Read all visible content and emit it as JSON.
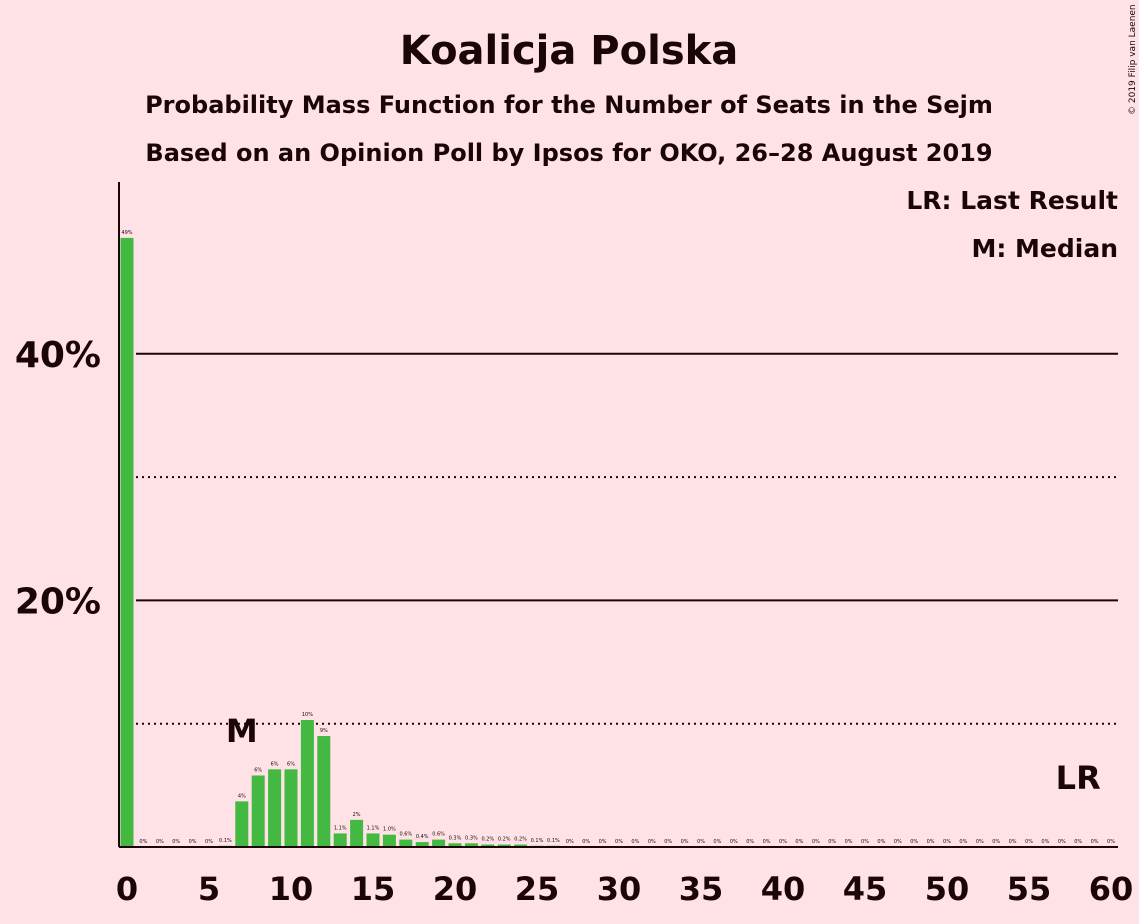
{
  "chart_data": {
    "type": "bar",
    "title": "Koalicja Polska",
    "subtitle": "Probability Mass Function for the Number of Seats in the Sejm",
    "subtitle2": "Based on an Opinion Poll by Ipsos for OKO, 26–28 August 2019",
    "copyright": "© 2019 Filip van Laenen",
    "legend": [
      "LR: Last Result",
      "M: Median"
    ],
    "legend_placement": "top-right",
    "bar_color": "#43B941",
    "xlim": [
      0,
      60
    ],
    "ylim": [
      0,
      0.54
    ],
    "x_ticks": [
      0,
      5,
      10,
      15,
      20,
      25,
      30,
      35,
      40,
      45,
      50,
      55,
      60
    ],
    "y_ticks_labeled": [
      {
        "value": 0.2,
        "label": "20%"
      },
      {
        "value": 0.4,
        "label": "40%"
      }
    ],
    "y_grid_dotted": [
      0.1,
      0.3
    ],
    "median_seat": 7,
    "median_label": "M",
    "last_result_seat": 58,
    "last_result_label": "LR",
    "x": [
      0,
      1,
      2,
      3,
      4,
      5,
      6,
      7,
      8,
      9,
      10,
      11,
      12,
      13,
      14,
      15,
      16,
      17,
      18,
      19,
      20,
      21,
      22,
      23,
      24,
      25,
      26,
      27,
      28,
      29,
      30,
      31,
      32,
      33,
      34,
      35,
      36,
      37,
      38,
      39,
      40,
      41,
      42,
      43,
      44,
      45,
      46,
      47,
      48,
      49,
      50,
      51,
      52,
      53,
      54,
      55,
      56,
      57,
      58,
      59,
      60
    ],
    "values": [
      0.494,
      0,
      0,
      0,
      0,
      0,
      0.001,
      0.037,
      0.058,
      0.063,
      0.063,
      0.103,
      0.09,
      0.011,
      0.022,
      0.011,
      0.01,
      0.006,
      0.004,
      0.006,
      0.003,
      0.003,
      0.002,
      0.002,
      0.002,
      0.001,
      0.001,
      0,
      0,
      0,
      0,
      0,
      0,
      0,
      0,
      0,
      0,
      0,
      0,
      0,
      0,
      0,
      0,
      0,
      0,
      0,
      0,
      0,
      0,
      0,
      0,
      0,
      0,
      0,
      0,
      0,
      0,
      0,
      0,
      0,
      0
    ],
    "labels": [
      "49%",
      "0%",
      "0%",
      "0%",
      "0%",
      "0%",
      "0.1%",
      "4%",
      "6%",
      "6%",
      "6%",
      "10%",
      "9%",
      "1.1%",
      "2%",
      "1.1%",
      "1.0%",
      "0.6%",
      "0.4%",
      "0.6%",
      "0.3%",
      "0.3%",
      "0.2%",
      "0.2%",
      "0.2%",
      "0.1%",
      "0.1%",
      "0%",
      "0%",
      "0%",
      "0%",
      "0%",
      "0%",
      "0%",
      "0%",
      "0%",
      "0%",
      "0%",
      "0%",
      "0%",
      "0%",
      "0%",
      "0%",
      "0%",
      "0%",
      "0%",
      "0%",
      "0%",
      "0%",
      "0%",
      "0%",
      "0%",
      "0%",
      "0%",
      "0%",
      "0%",
      "0%",
      "0%",
      "0%",
      "0%",
      "0%"
    ]
  }
}
